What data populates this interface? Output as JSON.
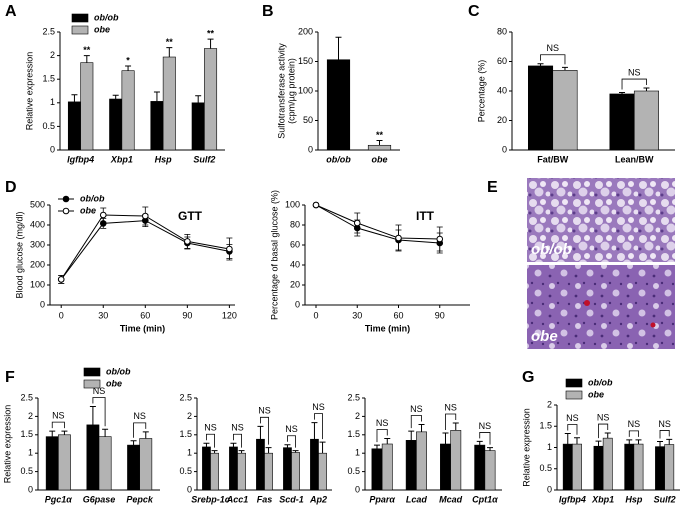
{
  "chart_data": [
    {
      "type": "bar",
      "panel": "A",
      "ylabel": "Relative expression",
      "categories": [
        "Igfbp4",
        "Xbp1",
        "Hsp",
        "Sulf2"
      ],
      "series": [
        {
          "name": "ob/ob",
          "color": "#000000",
          "values": [
            1.02,
            1.08,
            1.03,
            1.0
          ],
          "errors": [
            0.15,
            0.08,
            0.2,
            0.15
          ]
        },
        {
          "name": "obe",
          "color": "#b3b3b3",
          "values": [
            1.85,
            1.68,
            1.97,
            2.15
          ],
          "errors": [
            0.15,
            0.1,
            0.2,
            0.2
          ]
        }
      ],
      "ylim": [
        0,
        2.5
      ],
      "yticks": [
        0,
        0.5,
        1,
        1.5,
        2,
        2.5
      ],
      "significance": [
        "**",
        "*",
        "**",
        "**"
      ],
      "legend": "upper left"
    },
    {
      "type": "bar",
      "panel": "B",
      "ylabel": [
        "Sulfotransferase activity",
        "(cpm/µg protein)"
      ],
      "categories": [
        "ob/ob",
        "obe"
      ],
      "series": [
        {
          "colors": [
            "#000000",
            "#b3b3b3"
          ],
          "values": [
            153,
            8
          ],
          "errors": [
            38,
            8
          ]
        }
      ],
      "ylim": [
        0,
        200
      ],
      "yticks": [
        0,
        50,
        100,
        150,
        200
      ],
      "significance": [
        null,
        "**"
      ]
    },
    {
      "type": "bar",
      "panel": "C",
      "ylabel": "Percentage (%)",
      "categories": [
        "Fat/BW",
        "Lean/BW"
      ],
      "series": [
        {
          "color": "#000000",
          "values": [
            57,
            38
          ],
          "errors": [
            1.5,
            1
          ]
        },
        {
          "color": "#b3b3b3",
          "values": [
            54,
            40
          ],
          "errors": [
            2,
            2
          ]
        }
      ],
      "ylim": [
        0,
        80
      ],
      "yticks": [
        0,
        20,
        40,
        60,
        80
      ],
      "significance": [
        "NS",
        "NS"
      ]
    },
    {
      "type": "line",
      "panel": "D",
      "title": "GTT",
      "xlabel": "Time (min)",
      "ylabel": "Blood glucose (mg/dl)",
      "x": [
        0,
        30,
        60,
        90,
        120
      ],
      "series": [
        {
          "name": "ob/ob",
          "color": "#000000",
          "marker_fill": "#000000",
          "values": [
            128,
            408,
            422,
            310,
            268
          ],
          "errors": [
            20,
            25,
            30,
            30,
            35
          ]
        },
        {
          "name": "obe",
          "color": "#000000",
          "marker_fill": "#ffffff",
          "values": [
            128,
            450,
            445,
            318,
            280
          ],
          "errors": [
            20,
            35,
            45,
            35,
            55
          ]
        }
      ],
      "xlim": [
        -8,
        124
      ],
      "xticks": [
        0,
        30,
        60,
        90,
        120
      ],
      "ylim": [
        0,
        500
      ],
      "yticks": [
        0,
        100,
        200,
        300,
        400,
        500
      ],
      "legend": "upper left"
    },
    {
      "type": "line",
      "title": "ITT",
      "xlabel": "Time (min)",
      "ylabel": "Percentage of basal glucose (%)",
      "x": [
        0,
        30,
        60,
        90
      ],
      "series": [
        {
          "color": "#000000",
          "marker_fill": "#000000",
          "values": [
            100,
            77,
            65,
            62
          ],
          "errors": [
            0,
            8,
            10,
            10
          ]
        },
        {
          "color": "#000000",
          "marker_fill": "#ffffff",
          "values": [
            100,
            82,
            67,
            66
          ],
          "errors": [
            0,
            10,
            13,
            12
          ]
        }
      ],
      "xlim": [
        -8,
        112
      ],
      "xticks": [
        0,
        30,
        60,
        90
      ],
      "ylim": [
        0,
        100
      ],
      "yticks": [
        0,
        20,
        40,
        60,
        80,
        100
      ]
    },
    {
      "type": "image",
      "panel": "E",
      "labels": [
        "ob/ob",
        "obe"
      ]
    },
    {
      "type": "bar",
      "panel": "F",
      "ylabel": "Relative expression",
      "categories": [
        "Pgc1α",
        "G6pase",
        "Pepck"
      ],
      "series": [
        {
          "name": "ob/ob",
          "color": "#000000",
          "values": [
            1.45,
            1.77,
            1.22
          ],
          "errors": [
            0.15,
            0.5,
            0.12
          ]
        },
        {
          "name": "obe",
          "color": "#b3b3b3",
          "values": [
            1.5,
            1.45,
            1.4
          ],
          "errors": [
            0.1,
            0.2,
            0.18
          ]
        }
      ],
      "ylim": [
        0,
        2.5
      ],
      "yticks": [
        0,
        0.5,
        1,
        1.5,
        2,
        2.5
      ],
      "significance": [
        "NS",
        "NS",
        "NS"
      ],
      "legend": "upper center"
    },
    {
      "type": "bar",
      "categories": [
        "Srebp-1c",
        "Acc1",
        "Fas",
        "Scd-1",
        "Ap2"
      ],
      "series": [
        {
          "color": "#000000",
          "values": [
            1.17,
            1.17,
            1.38,
            1.15,
            1.38
          ],
          "errors": [
            0.1,
            0.1,
            0.35,
            0.08,
            0.45
          ]
        },
        {
          "color": "#b3b3b3",
          "values": [
            1.0,
            1.0,
            1.0,
            1.02,
            1.0
          ],
          "errors": [
            0.07,
            0.07,
            0.15,
            0.05,
            0.3
          ]
        }
      ],
      "ylim": [
        0,
        2.5
      ],
      "yticks": [
        0,
        0.5,
        1,
        1.5,
        2,
        2.5
      ],
      "significance": [
        "NS",
        "NS",
        "NS",
        "NS",
        "NS"
      ]
    },
    {
      "type": "bar",
      "categories": [
        "Pparα",
        "Lcad",
        "Mcad",
        "Cpt1α"
      ],
      "series": [
        {
          "color": "#000000",
          "values": [
            1.12,
            1.35,
            1.25,
            1.22
          ],
          "errors": [
            0.1,
            0.25,
            0.3,
            0.1
          ]
        },
        {
          "color": "#b3b3b3",
          "values": [
            1.25,
            1.58,
            1.62,
            1.07
          ],
          "errors": [
            0.15,
            0.2,
            0.2,
            0.08
          ]
        }
      ],
      "ylim": [
        0,
        2.5
      ],
      "yticks": [
        0,
        0.5,
        1,
        1.5,
        2,
        2.5
      ],
      "significance": [
        "NS",
        "NS",
        "NS",
        "NS"
      ]
    },
    {
      "type": "bar",
      "panel": "G",
      "ylabel": "Relative expression",
      "categories": [
        "Igfbp4",
        "Xbp1",
        "Hsp",
        "Sulf2"
      ],
      "series": [
        {
          "name": "ob/ob",
          "color": "#000000",
          "values": [
            1.08,
            1.03,
            1.08,
            1.02
          ],
          "errors": [
            0.25,
            0.12,
            0.1,
            0.12
          ]
        },
        {
          "name": "obe",
          "color": "#b3b3b3",
          "values": [
            1.08,
            1.22,
            1.08,
            1.07
          ],
          "errors": [
            0.15,
            0.12,
            0.1,
            0.12
          ]
        }
      ],
      "ylim": [
        0,
        2
      ],
      "yticks": [
        0,
        0.5,
        1,
        1.5,
        2
      ],
      "significance": [
        "NS",
        "NS",
        "NS",
        "NS"
      ],
      "legend": "upper left"
    }
  ]
}
